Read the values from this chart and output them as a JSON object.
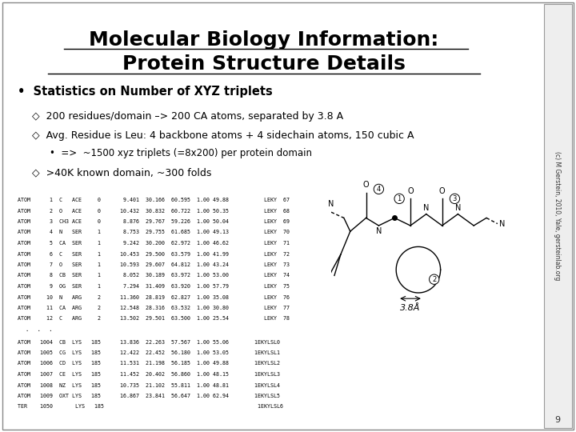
{
  "title_line1": "Molecular Biology Information:",
  "title_line2": "Protein Structure Details",
  "title_fontsize": 18,
  "bg_color": "#ffffff",
  "bullet_main": "Statistics on Number of XYZ triplets",
  "bullet_main_fontsize": 10.5,
  "bullets": [
    "200 residues/domain –> 200 CA atoms, separated by 3.8 A",
    "Avg. Residue is Leu: 4 backbone atoms + 4 sidechain atoms, 150 cubic A",
    ">40K known domain, ~300 folds"
  ],
  "sub_bullet": "=>  ~1500 xyz triplets (=8x200) per protein domain",
  "pdb_lines_top": [
    "ATOM      1  C   ACE     0       9.401  30.166  60.595  1.00 49.88           LEKY  67",
    "ATOM      2  O   ACE     0      10.432  30.832  60.722  1.00 50.35           LEKY  68",
    "ATOM      3  CH3 ACE     0       8.876  29.767  59.226  1.00 50.04           LEKY  69",
    "ATOM      4  N   SER     1       8.753  29.755  61.685  1.00 49.13           LEKY  70",
    "ATOM      5  CA  SER     1       9.242  30.200  62.972  1.00 46.62           LEKY  71",
    "ATOM      6  C   SER     1      10.453  29.500  63.579  1.00 41.99           LEKY  72",
    "ATOM      7  O   SER     1      10.593  29.607  64.812  1.00 43.24           LEKY  73",
    "ATOM      8  CB  SER     1       8.052  30.189  63.972  1.00 53.00           LEKY  74",
    "ATOM      9  OG  SER     1       7.294  31.409  63.920  1.00 57.79           LEKY  75",
    "ATOM     10  N   ARG     2      11.360  28.819  62.827  1.00 35.08           LEKY  76",
    "ATOM     11  CA  ARG     2      12.548  28.316  63.532  1.00 30.80           LEKY  77",
    "ATOM     12  C   ARG     2      13.502  29.501  63.500  1.00 25.54           LEKY  78"
  ],
  "pdb_dots": "  .  .  .",
  "pdb_lines_bottom": [
    "ATOM   1004  CB  LYS   185      13.836  22.263  57.567  1.00 55.06        1EKYLSL0",
    "ATOM   1005  CG  LYS   185      12.422  22.452  56.180  1.00 53.05        1EKYLSL1",
    "ATOM   1006  CD  LYS   185      11.531  21.198  56.185  1.00 49.88        1EKYLSL2",
    "ATOM   1007  CE  LYS   185      11.452  20.402  56.860  1.00 48.15        1EKYLSL3",
    "ATOM   1008  NZ  LYS   185      10.735  21.102  55.811  1.00 48.81        1EKYLSL4",
    "ATOM   1009  OXT LYS   185      16.867  23.841  56.647  1.00 62.94        1EKYLSL5",
    "TER    1050       LYS   185                                                1EKYLSL6"
  ],
  "footer_text": "(c) M Gerstein, 2010, Yale, gersteinlab.org",
  "slide_number": "9",
  "mono_fontsize": 4.8,
  "diamond": "◇"
}
